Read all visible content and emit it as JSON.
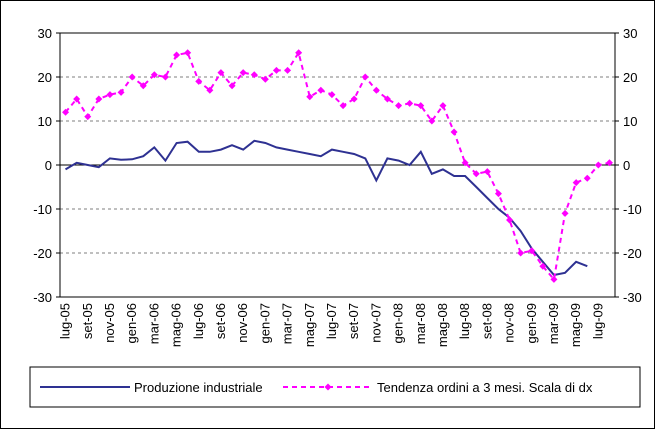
{
  "chart_data": {
    "type": "line",
    "categories": [
      "lug-05",
      null,
      "set-05",
      null,
      "nov-05",
      null,
      "gen-06",
      null,
      "mar-06",
      null,
      "mag-06",
      null,
      "lug-06",
      null,
      "set-06",
      null,
      "nov-06",
      null,
      "gen-07",
      null,
      "mar-07",
      null,
      "mag-07",
      null,
      "lug-07",
      null,
      "set-07",
      null,
      "nov-07",
      null,
      "gen-08",
      null,
      "mar-08",
      null,
      "mag-08",
      null,
      "lug-08",
      null,
      "set-08",
      null,
      "nov-08",
      null,
      "gen-09",
      null,
      "mar-09",
      null,
      "mag-09",
      null,
      "lug-09",
      null
    ],
    "series": [
      {
        "name": "Produzione industriale",
        "color": "#2e3192",
        "values": [
          -1,
          0.5,
          0,
          -0.5,
          1.5,
          1.2,
          1.3,
          2,
          4,
          1,
          5,
          5.3,
          3,
          3,
          3.5,
          4.5,
          3.5,
          5.5,
          5,
          4,
          3.5,
          3,
          2.5,
          2,
          3.5,
          3,
          2.5,
          1.5,
          -3.5,
          1.5,
          1,
          0,
          3,
          -2,
          -1,
          -2.5,
          -2.5,
          -5,
          -7.5,
          -10,
          -12,
          -15,
          -19,
          -22,
          -25,
          -24.5,
          -22,
          -23,
          null,
          null
        ]
      },
      {
        "name": "Tendenza ordini a 3 mesi. Scala di dx",
        "color": "#ff00ff",
        "axis": "y2",
        "values": [
          12,
          15,
          11,
          15,
          16,
          16.5,
          20,
          18,
          20.5,
          20,
          25,
          25.5,
          19,
          17,
          21,
          18,
          21,
          20.5,
          19.5,
          21.5,
          21.5,
          25.5,
          15.5,
          17,
          16,
          13.5,
          15,
          20,
          17,
          15,
          13.5,
          14,
          13.5,
          10,
          13.5,
          7.5,
          0.5,
          -2,
          -1.5,
          -6.5,
          -12.5,
          -20,
          -19.5,
          -23,
          -26,
          -11,
          -4,
          -3,
          0,
          0.5
        ]
      }
    ],
    "ylim": [
      -30,
      30
    ],
    "yticks": [
      -30,
      -20,
      -10,
      0,
      10,
      20,
      30
    ],
    "y2lim": [
      -30,
      30
    ],
    "y2ticks": [
      -30,
      -20,
      -10,
      0,
      10,
      20,
      30
    ],
    "grid": true
  }
}
